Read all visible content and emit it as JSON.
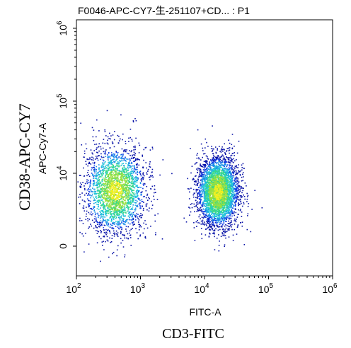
{
  "chart_data": {
    "type": "scatter",
    "title": "F0046-APC-CY7-生-251107+CD... : P1",
    "xlabel": "FITC-A",
    "ylabel": "APC-Cy7-A",
    "outer_xlabel": "CD3-FITC",
    "outer_ylabel": "CD38-APC-CY7",
    "x_scale": "log",
    "y_scale": "biexponential",
    "xlim": [
      100,
      1000000
    ],
    "x_ticks": [
      {
        "base": "10",
        "exp": "2",
        "value": 100
      },
      {
        "base": "10",
        "exp": "3",
        "value": 1000
      },
      {
        "base": "10",
        "exp": "4",
        "value": 10000
      },
      {
        "base": "10",
        "exp": "5",
        "value": 100000
      },
      {
        "base": "10",
        "exp": "6",
        "value": 1000000
      }
    ],
    "y_ticks": [
      {
        "base": "0",
        "exp": "",
        "value": 0
      },
      {
        "base": "10",
        "exp": "4",
        "value": 10000
      },
      {
        "base": "10",
        "exp": "5",
        "value": 100000
      },
      {
        "base": "10",
        "exp": "6",
        "value": 1000000
      }
    ],
    "grid": false,
    "plot_style": "density-colored dot plot (blue low, green/yellow high density)",
    "series": [
      {
        "population": "CD3-negative cluster",
        "x_center": 400,
        "x_spread_decades": 0.23,
        "y_center_rel": 0.45,
        "y_spread_rel": 0.17,
        "events": 2600
      },
      {
        "population": "CD3-positive cluster",
        "x_center": 16000,
        "x_spread_decades": 0.16,
        "y_center_rel": 0.44,
        "y_spread_rel": 0.14,
        "events": 3600
      }
    ],
    "density_colors": [
      "#0a14a8",
      "#1540e8",
      "#1a90e8",
      "#22c8d8",
      "#38d888",
      "#9ae040",
      "#f0f020"
    ]
  }
}
